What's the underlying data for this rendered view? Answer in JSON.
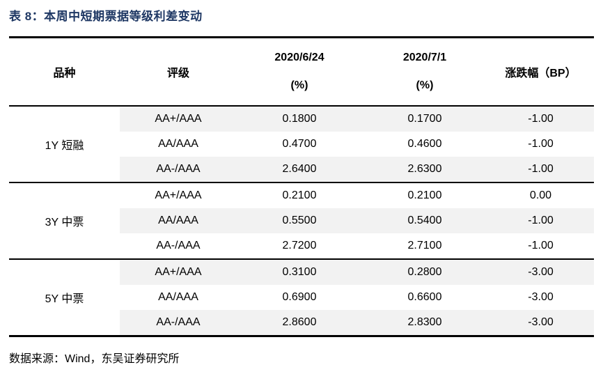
{
  "title": "表 8：本周中短期票据等级利差变动",
  "colors": {
    "title_navy": "#1F3864",
    "row_shade": "#F2F2F2",
    "border": "#000000"
  },
  "table": {
    "headers": {
      "variety": "品种",
      "rating": "评级",
      "date_prev": "2020/6/24",
      "date_prev_unit": "(%)",
      "date_curr": "2020/7/1",
      "date_curr_unit": "(%)",
      "change": "涨跌幅（BP）"
    },
    "groups": [
      {
        "name": "1Y 短融",
        "rows": [
          {
            "rating": "AA+/AAA",
            "prev": "0.1800",
            "curr": "0.1700",
            "change": "-1.00"
          },
          {
            "rating": "AA/AAA",
            "prev": "0.4700",
            "curr": "0.4600",
            "change": "-1.00"
          },
          {
            "rating": "AA-/AAA",
            "prev": "2.6400",
            "curr": "2.6300",
            "change": "-1.00"
          }
        ]
      },
      {
        "name": "3Y 中票",
        "rows": [
          {
            "rating": "AA+/AAA",
            "prev": "0.2100",
            "curr": "0.2100",
            "change": "0.00"
          },
          {
            "rating": "AA/AAA",
            "prev": "0.5500",
            "curr": "0.5400",
            "change": "-1.00"
          },
          {
            "rating": "AA-/AAA",
            "prev": "2.7200",
            "curr": "2.7100",
            "change": "-1.00"
          }
        ]
      },
      {
        "name": "5Y 中票",
        "rows": [
          {
            "rating": "AA+/AAA",
            "prev": "0.3100",
            "curr": "0.2800",
            "change": "-3.00"
          },
          {
            "rating": "AA/AAA",
            "prev": "0.6900",
            "curr": "0.6600",
            "change": "-3.00"
          },
          {
            "rating": "AA-/AAA",
            "prev": "2.8600",
            "curr": "2.8300",
            "change": "-3.00"
          }
        ]
      }
    ]
  },
  "footer": {
    "source": "数据来源：Wind，东吴证券研究所"
  }
}
